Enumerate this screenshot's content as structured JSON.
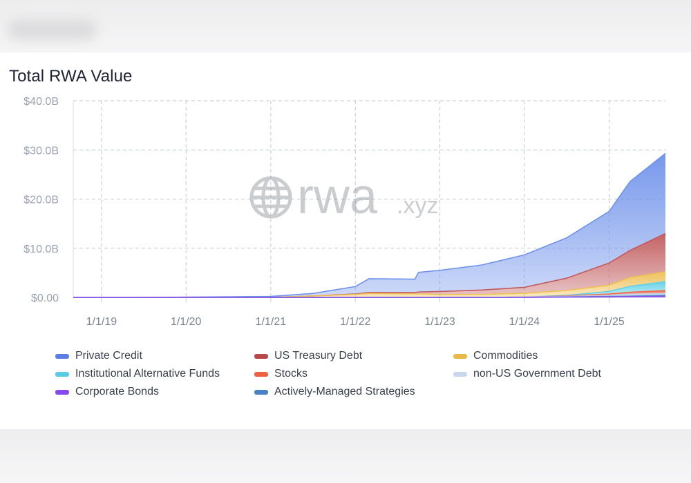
{
  "title": "Total RWA Value",
  "watermark": {
    "text": "rwa",
    "suffix": ".xyz",
    "icon": "globe-icon"
  },
  "chart_data": {
    "type": "area",
    "stacked": true,
    "title": "Total RWA Value",
    "xlabel": "",
    "ylabel": "",
    "ylim": [
      0,
      40
    ],
    "y_unit": "billion USD",
    "y_ticks": [
      "$0.00",
      "$10.0B",
      "$20.0B",
      "$30.0B",
      "$40.0B"
    ],
    "x_ticks": [
      "1/1/19",
      "1/1/20",
      "1/1/21",
      "1/1/22",
      "1/1/23",
      "1/1/24",
      "1/1/25"
    ],
    "x_range": [
      "2018-09-01",
      "2025-09-01"
    ],
    "grid": "dashed",
    "legend_position": "bottom",
    "x": [
      "2018-09-01",
      "2020-01-01",
      "2021-01-01",
      "2021-07-01",
      "2022-01-01",
      "2022-03-01",
      "2022-09-15",
      "2022-10-01",
      "2023-01-01",
      "2023-07-01",
      "2024-01-01",
      "2024-07-01",
      "2025-01-01",
      "2025-04-01",
      "2025-09-01"
    ],
    "series": [
      {
        "name": "Corporate Bonds",
        "color": "#8b4ff0",
        "values": [
          0,
          0,
          0,
          0,
          0,
          0,
          0,
          0,
          0,
          0,
          0,
          0.05,
          0.1,
          0.15,
          0.2
        ]
      },
      {
        "name": "Actively-Managed Strategies",
        "color": "#4f86c8",
        "values": [
          0,
          0,
          0,
          0,
          0,
          0,
          0,
          0,
          0,
          0,
          0,
          0.05,
          0.1,
          0.1,
          0.2
        ]
      },
      {
        "name": "non-US Government Debt",
        "color": "#c3d3ec",
        "values": [
          0,
          0,
          0,
          0,
          0,
          0,
          0,
          0,
          0,
          0,
          0.05,
          0.1,
          0.2,
          0.4,
          0.4
        ]
      },
      {
        "name": "Stocks",
        "color": "#ef6a4a",
        "values": [
          0,
          0,
          0,
          0,
          0,
          0,
          0,
          0,
          0,
          0,
          0,
          0.1,
          0.3,
          0.4,
          0.6
        ]
      },
      {
        "name": "Institutional Alternative Funds",
        "color": "#5fd0e6",
        "values": [
          0,
          0,
          0,
          0,
          0,
          0,
          0,
          0,
          0,
          0,
          0,
          0.1,
          0.5,
          1.2,
          1.8
        ]
      },
      {
        "name": "Commodities",
        "color": "#eebf52",
        "values": [
          0,
          0,
          0,
          0.3,
          0.6,
          0.8,
          0.7,
          0.7,
          0.6,
          0.6,
          0.8,
          1.0,
          1.3,
          1.8,
          2.0
        ]
      },
      {
        "name": "US Treasury Debt",
        "color": "#c05a5c",
        "values": [
          0,
          0,
          0,
          0,
          0.1,
          0.2,
          0.3,
          0.4,
          0.6,
          0.9,
          1.2,
          2.5,
          4.5,
          5.5,
          7.8
        ]
      },
      {
        "name": "Private Credit",
        "color": "#6f92ea",
        "values": [
          0,
          0.05,
          0.2,
          0.5,
          1.5,
          2.8,
          2.7,
          4.0,
          4.3,
          5.1,
          6.6,
          8.2,
          10.5,
          14.0,
          16.3
        ]
      }
    ]
  },
  "legend": [
    {
      "label": "Private Credit",
      "color": "#5c7fe6"
    },
    {
      "label": "US Treasury Debt",
      "color": "#b94a4c"
    },
    {
      "label": "Commodities",
      "color": "#e8b84a"
    },
    {
      "label": "Institutional Alternative Funds",
      "color": "#58cce3"
    },
    {
      "label": "Stocks",
      "color": "#ee6240"
    },
    {
      "label": "non-US Government Debt",
      "color": "#c9d7ee"
    },
    {
      "label": "Corporate Bonds",
      "color": "#8748ee"
    },
    {
      "label": "Actively-Managed Strategies",
      "color": "#4a80c4"
    }
  ]
}
